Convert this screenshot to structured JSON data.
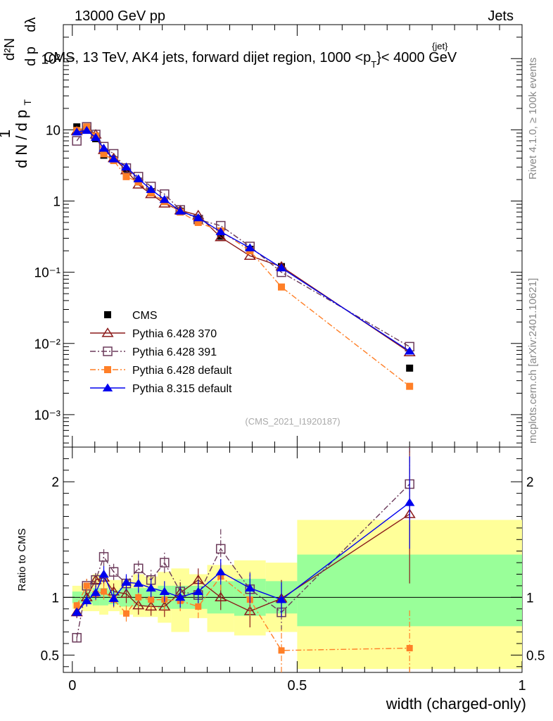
{
  "header": {
    "left": "13000 GeV pp",
    "right": "Jets"
  },
  "chart_data": {
    "type": "line",
    "title": "CMS, 13 TeV, AK4 jets, forward dijet region, 1000 <p",
    "title_sub": "T",
    "title_sup": "{jet}",
    "title_tail": "}< 4000 GeV",
    "xlabel": "width (charged-only)",
    "ylabel": "1 / dN / dp_T  d²N / dp_T dλ",
    "ylabel_parts": {
      "one": "1",
      "dN": "d N / d p",
      "sub_T": "T",
      "d2N": "d²N",
      "dpdl": "d p",
      "dl": "dλ"
    },
    "ratio_ylabel": "Ratio to CMS",
    "xlim": [
      -0.02,
      1.0
    ],
    "ylim": [
      0.00035,
      300
    ],
    "ratio_ylim": [
      0.35,
      2.3
    ],
    "x_ticks": [
      "0",
      "0.5",
      "1"
    ],
    "y_ticks": [
      "10⁻³",
      "10⁻²",
      "10⁻¹",
      "1",
      "10",
      "10²"
    ],
    "ratio_ticks": [
      "0.5",
      "1",
      "2"
    ],
    "watermark": "(CMS_2021_I1920187)",
    "side_text_top": "Rivet 4.1.0, ≥ 100k events",
    "side_text_bottom": "mcplots.cern.ch [arXiv:2401.10621]",
    "bins": [
      {
        "lo": 0.0,
        "hi": 0.02
      },
      {
        "lo": 0.02,
        "hi": 0.045
      },
      {
        "lo": 0.045,
        "hi": 0.06
      },
      {
        "lo": 0.06,
        "hi": 0.08
      },
      {
        "lo": 0.08,
        "hi": 0.105
      },
      {
        "lo": 0.105,
        "hi": 0.135
      },
      {
        "lo": 0.135,
        "hi": 0.16
      },
      {
        "lo": 0.16,
        "hi": 0.19
      },
      {
        "lo": 0.19,
        "hi": 0.22
      },
      {
        "lo": 0.22,
        "hi": 0.26
      },
      {
        "lo": 0.26,
        "hi": 0.3
      },
      {
        "lo": 0.3,
        "hi": 0.36
      },
      {
        "lo": 0.36,
        "hi": 0.43
      },
      {
        "lo": 0.43,
        "hi": 0.5
      },
      {
        "lo": 0.5,
        "hi": 1.0
      }
    ],
    "band_total": [
      [
        0.9,
        1.1
      ],
      [
        0.88,
        1.12
      ],
      [
        0.88,
        1.2
      ],
      [
        0.85,
        1.2
      ],
      [
        0.88,
        1.15
      ],
      [
        0.85,
        1.15
      ],
      [
        0.83,
        1.2
      ],
      [
        0.83,
        1.18
      ],
      [
        0.78,
        1.22
      ],
      [
        0.7,
        1.25
      ],
      [
        0.82,
        1.2
      ],
      [
        0.7,
        1.28
      ],
      [
        0.67,
        1.32
      ],
      [
        0.7,
        1.3
      ],
      [
        0.38,
        1.67
      ]
    ],
    "band_stat": [
      [
        0.95,
        1.05
      ],
      [
        0.95,
        1.05
      ],
      [
        0.93,
        1.08
      ],
      [
        0.93,
        1.08
      ],
      [
        0.94,
        1.06
      ],
      [
        0.92,
        1.08
      ],
      [
        0.92,
        1.08
      ],
      [
        0.92,
        1.08
      ],
      [
        0.9,
        1.1
      ],
      [
        0.9,
        1.1
      ],
      [
        0.9,
        1.1
      ],
      [
        0.86,
        1.14
      ],
      [
        0.84,
        1.16
      ],
      [
        0.86,
        1.14
      ],
      [
        0.75,
        1.37
      ]
    ],
    "legend": [
      {
        "label": "CMS",
        "color": "#000000",
        "marker": "square-filled",
        "line": "none"
      },
      {
        "label": "Pythia 6.428 370",
        "color": "#8b1a1a",
        "marker": "triangle-open",
        "line": "solid"
      },
      {
        "label": "Pythia 6.428 391",
        "color": "#6b3a5a",
        "marker": "square-open",
        "line": "dashdot"
      },
      {
        "label": "Pythia 6.428 default",
        "color": "#ff7f27",
        "marker": "square-filled",
        "line": "dashdot"
      },
      {
        "label": "Pythia 8.315 default",
        "color": "#0000ee",
        "marker": "triangle-filled",
        "line": "solid"
      }
    ],
    "series": [
      {
        "name": "CMS",
        "x": [
          0.01,
          0.032,
          0.052,
          0.07,
          0.092,
          0.12,
          0.147,
          0.175,
          0.205,
          0.24,
          0.28,
          0.33,
          0.395,
          0.465,
          0.75
        ],
        "values": [
          11,
          10.2,
          7.5,
          4.4,
          3.8,
          2.6,
          1.9,
          1.35,
          1.0,
          0.72,
          0.55,
          0.32,
          0.21,
          0.12,
          0.0045
        ]
      },
      {
        "name": "Pythia 6.428 370",
        "x": [
          0.01,
          0.032,
          0.052,
          0.07,
          0.092,
          0.12,
          0.147,
          0.175,
          0.205,
          0.24,
          0.28,
          0.33,
          0.395,
          0.465,
          0.75
        ],
        "values": [
          9.6,
          10.3,
          8.6,
          5.2,
          4.0,
          2.7,
          1.7,
          1.25,
          0.92,
          0.74,
          0.63,
          0.31,
          0.17,
          0.12,
          0.0075
        ],
        "ratio": [
          0.87,
          1.0,
          1.15,
          1.17,
          1.05,
          1.03,
          0.93,
          0.92,
          0.92,
          1.04,
          1.15,
          1.0,
          0.88,
          0.99,
          1.72
        ],
        "ratio_err": [
          0.05,
          0.06,
          0.06,
          0.07,
          0.07,
          0.08,
          0.08,
          0.08,
          0.09,
          0.09,
          0.1,
          0.11,
          0.14,
          0.16,
          0.6
        ]
      },
      {
        "name": "Pythia 6.428 391",
        "x": [
          0.01,
          0.032,
          0.052,
          0.07,
          0.092,
          0.12,
          0.147,
          0.175,
          0.205,
          0.24,
          0.28,
          0.33,
          0.395,
          0.465,
          0.75
        ],
        "values": [
          7.0,
          11.0,
          8.6,
          5.8,
          4.6,
          2.9,
          2.2,
          1.6,
          1.25,
          0.75,
          0.55,
          0.45,
          0.23,
          0.1,
          0.009
        ],
        "ratio": [
          0.65,
          1.1,
          1.15,
          1.35,
          1.22,
          1.12,
          1.25,
          1.15,
          1.3,
          1.05,
          1.02,
          1.42,
          1.07,
          0.87,
          1.98
        ],
        "ratio_err": [
          0.04,
          0.06,
          0.06,
          0.08,
          0.07,
          0.08,
          0.08,
          0.09,
          0.09,
          0.1,
          0.11,
          0.17,
          0.15,
          0.16,
          0.4
        ]
      },
      {
        "name": "Pythia 6.428 default",
        "x": [
          0.01,
          0.032,
          0.052,
          0.07,
          0.092,
          0.12,
          0.147,
          0.175,
          0.205,
          0.24,
          0.28,
          0.33,
          0.395,
          0.465,
          0.75
        ],
        "values": [
          9.8,
          11.0,
          8.2,
          4.6,
          3.7,
          2.2,
          1.85,
          1.3,
          0.98,
          0.7,
          0.5,
          0.38,
          0.2,
          0.062,
          0.0025
        ],
        "ratio": [
          0.93,
          1.1,
          1.03,
          1.05,
          0.98,
          0.86,
          1.0,
          0.98,
          0.98,
          0.97,
          0.92,
          1.18,
          0.98,
          0.54,
          0.56
        ],
        "ratio_err": [
          0.05,
          0.06,
          0.06,
          0.07,
          0.07,
          0.07,
          0.08,
          0.08,
          0.09,
          0.09,
          0.1,
          0.12,
          0.14,
          0.2,
          0.33
        ]
      },
      {
        "name": "Pythia 8.315 default",
        "x": [
          0.01,
          0.032,
          0.052,
          0.07,
          0.092,
          0.12,
          0.147,
          0.175,
          0.205,
          0.24,
          0.28,
          0.33,
          0.395,
          0.465,
          0.75
        ],
        "values": [
          9.3,
          9.8,
          7.8,
          5.5,
          3.9,
          3.0,
          2.05,
          1.45,
          1.05,
          0.72,
          0.58,
          0.37,
          0.22,
          0.115,
          0.0078
        ],
        "ratio": [
          0.87,
          0.97,
          1.04,
          1.2,
          0.99,
          1.13,
          1.12,
          1.08,
          1.05,
          1.0,
          1.05,
          1.22,
          1.08,
          0.98,
          1.82
        ],
        "ratio_err": [
          0.04,
          0.05,
          0.06,
          0.07,
          0.07,
          0.07,
          0.08,
          0.08,
          0.09,
          0.09,
          0.1,
          0.11,
          0.13,
          0.15,
          0.4
        ]
      }
    ]
  }
}
